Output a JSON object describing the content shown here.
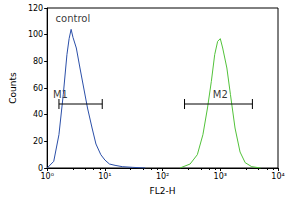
{
  "chart_data": {
    "type": "line",
    "xlabel": "FL2-H",
    "ylabel": "Counts",
    "log": "x",
    "grid": false,
    "xlim": [
      1,
      10000
    ],
    "xticks": [
      {
        "value": 1,
        "label": "10⁰"
      },
      {
        "value": 10,
        "label": "10¹"
      },
      {
        "value": 100,
        "label": "10²"
      },
      {
        "value": 1000,
        "label": "10³"
      },
      {
        "value": 10000,
        "label": "10⁴"
      }
    ],
    "ylim": [
      0,
      120
    ],
    "yticks": [
      0,
      20,
      40,
      60,
      80,
      100,
      120
    ],
    "series": [
      {
        "color": "#2b4fa8",
        "x": [
          1,
          1.3,
          1.6,
          1.9,
          2.2,
          2.4,
          2.6,
          2.8,
          3.2,
          3.7,
          4.3,
          5,
          6,
          7,
          8.5,
          10,
          12,
          15,
          20,
          30,
          50
        ],
        "values": [
          0,
          5,
          25,
          55,
          85,
          97,
          104,
          98,
          90,
          75,
          60,
          45,
          30,
          18,
          10,
          6,
          3,
          2,
          1,
          0.5,
          0
        ]
      },
      {
        "color": "#52c23a",
        "x": [
          200,
          300,
          400,
          500,
          600,
          700,
          800,
          900,
          1000,
          1100,
          1300,
          1500,
          1800,
          2200,
          2700,
          3500,
          5000
        ],
        "values": [
          0,
          3,
          10,
          25,
          45,
          65,
          85,
          95,
          97,
          90,
          75,
          55,
          30,
          12,
          4,
          1,
          0
        ]
      }
    ],
    "annotations": [
      {
        "text": "control",
        "x": 1.4,
        "y": 112
      },
      {
        "text": "M1",
        "x": [
          1.6,
          9
        ],
        "y": 48,
        "label_x": 1.7,
        "label_y": 55
      },
      {
        "text": "M2",
        "x": [
          240,
          3600
        ],
        "y": 48,
        "label_x": 1000,
        "label_y": 55
      }
    ]
  }
}
